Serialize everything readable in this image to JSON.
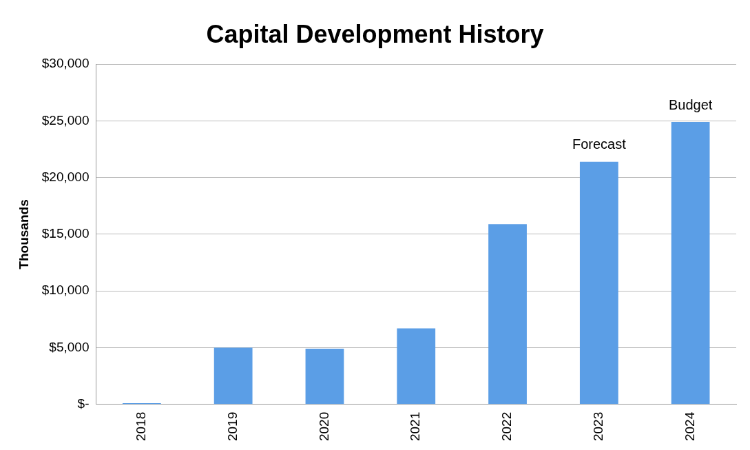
{
  "chart_data": {
    "type": "bar",
    "title": "Capital Development History",
    "ylabel": "Thousands",
    "categories": [
      "2018",
      "2019",
      "2020",
      "2021",
      "2022",
      "2023",
      "2024"
    ],
    "values": [
      100,
      5000,
      4900,
      6700,
      15900,
      21400,
      24900
    ],
    "color": "#5b9ee6",
    "ylim": [
      0,
      30000
    ],
    "yticks": [
      {
        "value": 0,
        "label": "$-"
      },
      {
        "value": 5000,
        "label": "$5,000"
      },
      {
        "value": 10000,
        "label": "$10,000"
      },
      {
        "value": 15000,
        "label": "$15,000"
      },
      {
        "value": 20000,
        "label": "$20,000"
      },
      {
        "value": 25000,
        "label": "$25,000"
      },
      {
        "value": 30000,
        "label": "$30,000"
      }
    ],
    "grid": "y",
    "legend": false,
    "annotations": [
      {
        "text": "Forecast",
        "x": "2023",
        "y": 21400
      },
      {
        "text": "Budget",
        "x": "2024",
        "y": 24900
      }
    ]
  }
}
